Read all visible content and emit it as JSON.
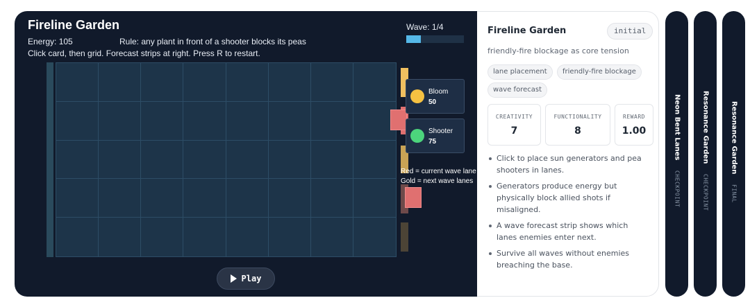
{
  "game": {
    "title": "Fireline Garden",
    "energy_label": "Energy: 105",
    "rule_text": "Rule: any plant in front of a shooter blocks its peas",
    "help_text": "Click card, then grid. Forecast strips at right. Press R to restart.",
    "wave_label": "Wave: 1/4",
    "wave_progress": 0.25,
    "grid": {
      "rows": 5,
      "cols": 8
    },
    "cards": [
      {
        "name": "Bloom",
        "cost": "50",
        "color": "#f5c142"
      },
      {
        "name": "Shooter",
        "cost": "75",
        "color": "#4cd47c"
      }
    ],
    "legend": {
      "red": "Red = current wave lane",
      "gold": "Gold = next wave lanes"
    },
    "play_label": "Play",
    "colors": {
      "background": "#111a2b",
      "grid_cell": "#1d3449",
      "forecast_gold": "#f0c060",
      "forecast_red": "#e07070",
      "wave_fill": "#55b8e8"
    }
  },
  "info": {
    "title": "Fireline Garden",
    "badge": "initial",
    "description": "friendly-fire blockage as core tension",
    "tags": [
      "lane placement",
      "friendly-fire blockage",
      "wave forecast"
    ],
    "metrics": [
      {
        "label": "CREATIVITY",
        "value": "7"
      },
      {
        "label": "FUNCTIONALITY",
        "value": "8"
      },
      {
        "label": "REWARD",
        "value": "1.00"
      }
    ],
    "bullets": [
      "Click to place sun generators and pea shooters in lanes.",
      "Generators produce energy but physically block allied shots if misaligned.",
      "A wave forecast strip shows which lanes enemies enter next.",
      "Survive all waves without enemies breaching the base."
    ]
  },
  "side_tabs": [
    {
      "name": "Neon Bent Lanes",
      "status": "CHECKPOINT"
    },
    {
      "name": "Resonance Garden",
      "status": "CHECKPOINT"
    },
    {
      "name": "Resonance Garden",
      "status": "FINAL"
    }
  ]
}
